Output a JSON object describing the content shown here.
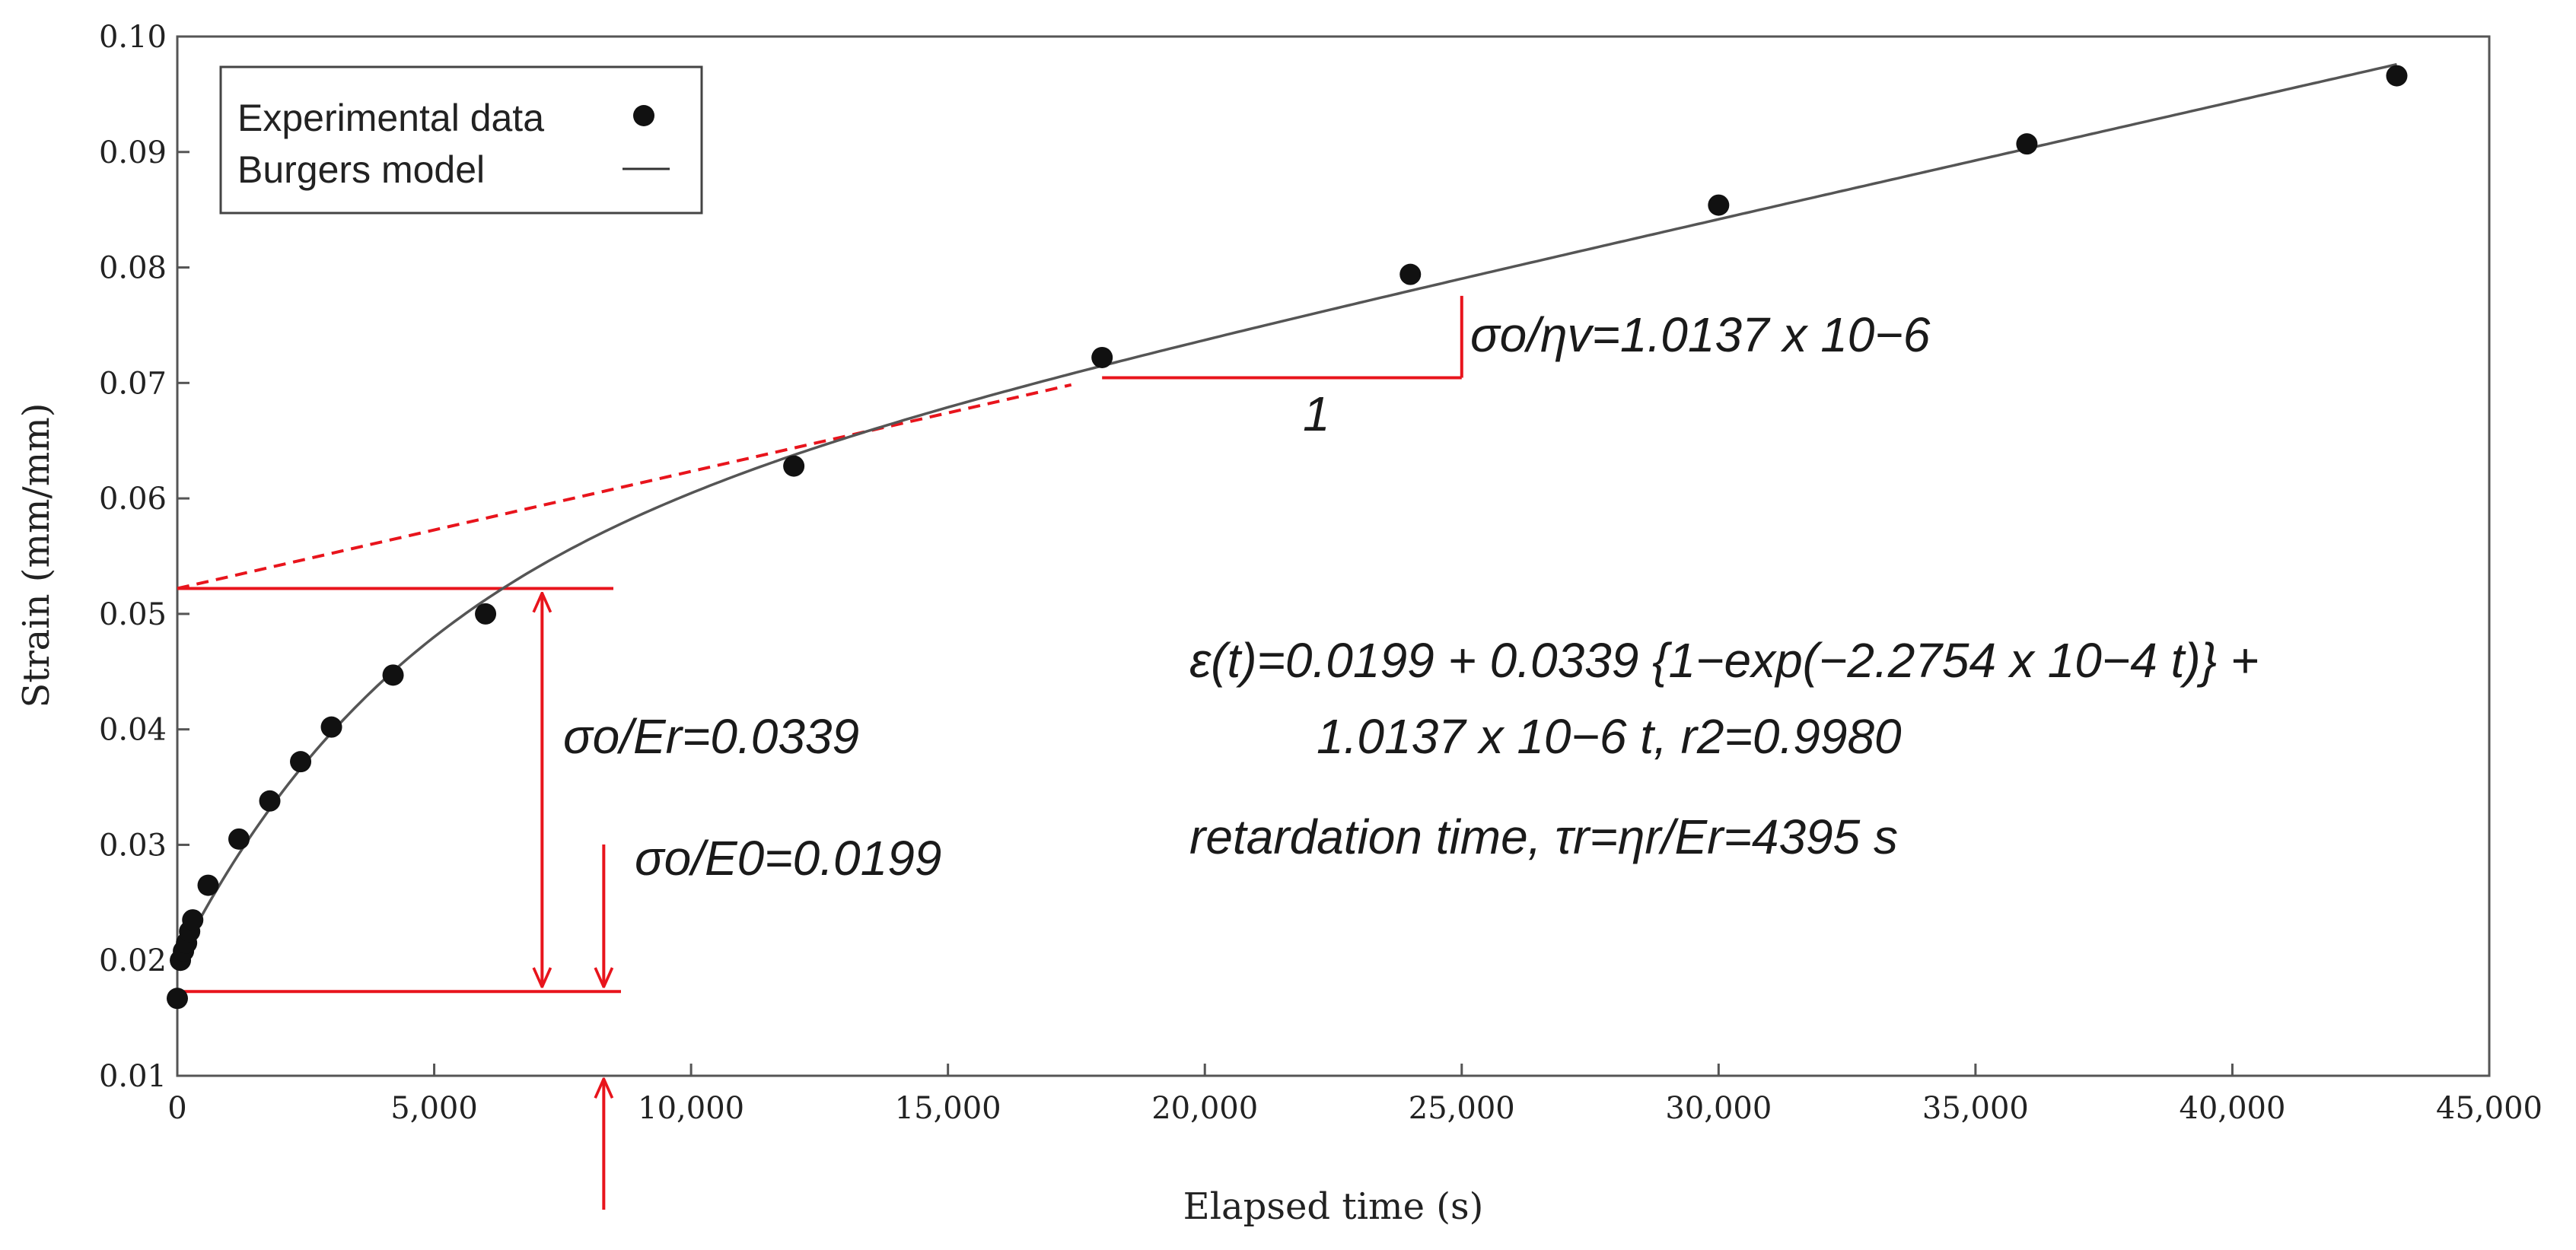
{
  "chart_data": {
    "type": "scatter",
    "xlabel": "Elapsed time (s)",
    "ylabel": "Strain (mm/mm)",
    "xlim": [
      0,
      45000
    ],
    "ylim": [
      0.01,
      0.1
    ],
    "xticks": [
      "0",
      "5,000",
      "10,000",
      "15,000",
      "20,000",
      "25,000",
      "30,000",
      "35,000",
      "40,000",
      "45,000"
    ],
    "yticks": [
      "0.01",
      "0.02",
      "0.03",
      "0.04",
      "0.05",
      "0.06",
      "0.07",
      "0.08",
      "0.09",
      "0.10"
    ],
    "legend": {
      "position": "top-left",
      "entries": [
        "Experimental data",
        "Burgers model"
      ]
    },
    "series": [
      {
        "name": "Experimental data",
        "marker": "dot",
        "x": [
          0,
          60,
          120,
          180,
          240,
          300,
          600,
          1200,
          1800,
          2400,
          3000,
          4200,
          6000,
          12000,
          18000,
          24000,
          30000,
          36000,
          43200
        ],
        "y": [
          0.0167,
          0.02,
          0.0208,
          0.0215,
          0.0225,
          0.0235,
          0.0265,
          0.0305,
          0.0338,
          0.0372,
          0.0402,
          0.0447,
          0.05,
          0.0628,
          0.0722,
          0.0794,
          0.0854,
          0.0907,
          0.0966
        ]
      },
      {
        "name": "Burgers model",
        "model": {
          "e0": 0.0199,
          "er": 0.0339,
          "k": 0.00022754,
          "ev": 1.0137e-06
        },
        "x_range": [
          0,
          43200
        ]
      }
    ],
    "constructions": {
      "asymptote_intercept": 0.0522,
      "asymptote_x_end": 17400,
      "slope_triangle": {
        "x0": 18000,
        "x1": 25000
      },
      "bracket_x": 7100,
      "arrow_x": 8300,
      "instant_strain_y": 0.0173
    },
    "annotations": {
      "slope_rate": "σo/ηv=1.0137 x 10−6",
      "slope_run": "1",
      "retarded_strain": "σo/Er=0.0339",
      "instant_strain": "σo/E0=0.0199",
      "equation_line1": "ε(t)=0.0199 + 0.0339 {1−exp(−2.2754 x 10−4 t)} +",
      "equation_line2": "1.0137 x 10−6 t, r2=0.9980",
      "retardation": "retardation time, τr=ηr/Er=4395 s"
    }
  },
  "colors": {
    "construction": "#e8141c",
    "ink": "#111111",
    "model_line": "#555555"
  }
}
